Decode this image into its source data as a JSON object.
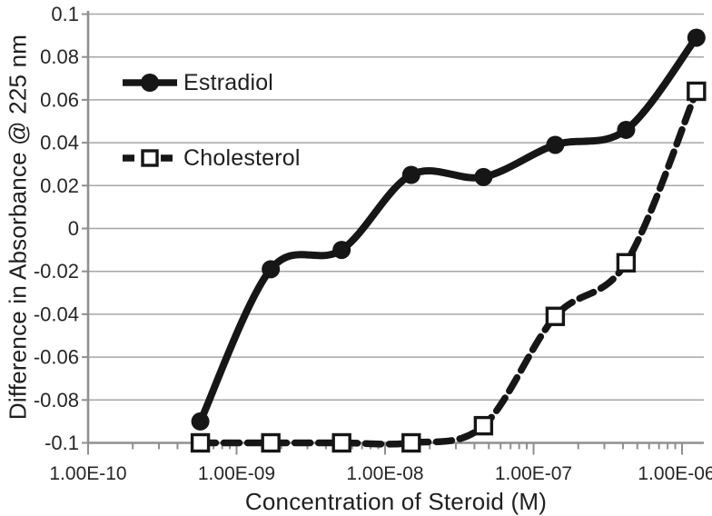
{
  "colors": {
    "series": "#161616",
    "text": "#1f1f1f",
    "tick_text": "#262626",
    "grid": "#a6a6a6",
    "axis": "#8f8f8f",
    "background": "#ffffff"
  },
  "chart_data": {
    "type": "line",
    "title": "",
    "xlabel": "Concentration of Steroid (M)",
    "ylabel": "Difference in Absorbance @ 225 nm",
    "x_scale": "log",
    "xlim": [
      1e-10,
      1.35e-06
    ],
    "ylim": [
      -0.1,
      0.1
    ],
    "grid": "horizontal",
    "legend_position": "inside-top-left",
    "x_axis": {
      "tick_values": [
        1e-10,
        1e-09,
        1e-08,
        1e-07,
        1e-06
      ],
      "tick_labels": [
        "1.00E-10",
        "1.00E-09",
        "1.00E-08",
        "1.00E-07",
        "1.00E-06"
      ],
      "minor_log_ticks": true
    },
    "y_axis": {
      "tick_values": [
        0.1,
        0.08,
        0.06,
        0.04,
        0.02,
        0,
        -0.02,
        -0.04,
        -0.06,
        -0.08,
        -0.1
      ],
      "tick_labels": [
        "0.1",
        "0.08",
        "0.06",
        "0.04",
        "0.02",
        "0",
        "-0.02",
        "-0.04",
        "-0.06",
        "-0.08",
        "-0.1"
      ]
    },
    "series": [
      {
        "name": "Estradiol",
        "line_style": "solid",
        "marker": "filled-circle",
        "smoothed": true,
        "x": [
          5.7e-10,
          1.7e-09,
          5.1e-09,
          1.5e-08,
          4.6e-08,
          1.4e-07,
          4.2e-07,
          1.25e-06
        ],
        "y": [
          -0.09,
          -0.019,
          -0.01,
          0.025,
          0.024,
          0.039,
          0.046,
          0.089
        ]
      },
      {
        "name": "Cholesterol",
        "line_style": "dashed",
        "marker": "open-square",
        "smoothed": true,
        "x": [
          5.7e-10,
          1.7e-09,
          5.1e-09,
          1.5e-08,
          4.6e-08,
          1.4e-07,
          4.2e-07,
          1.25e-06
        ],
        "y": [
          -0.1,
          -0.1,
          -0.1,
          -0.1,
          -0.092,
          -0.041,
          -0.016,
          0.064
        ]
      }
    ]
  }
}
